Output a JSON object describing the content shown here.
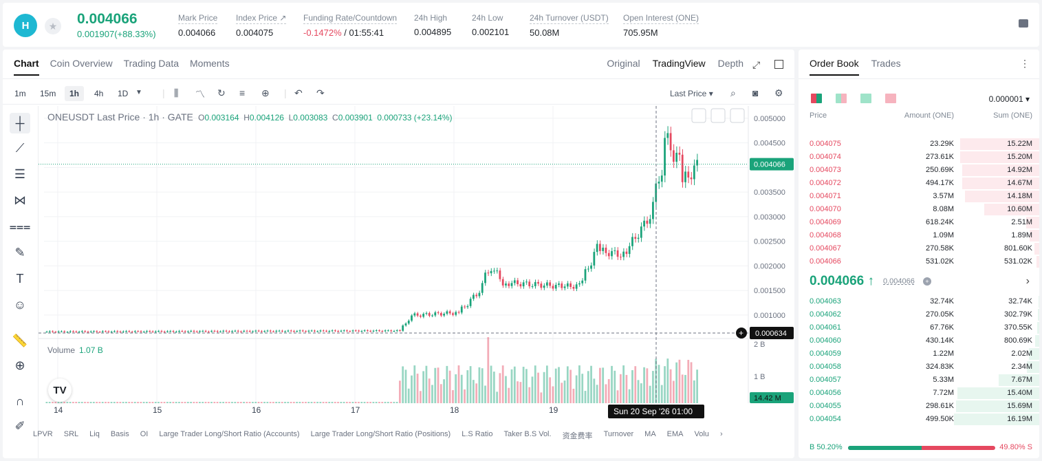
{
  "header": {
    "logo_text": "H",
    "price": "0.004066",
    "change": "0.001907(+88.33%)",
    "stats": [
      {
        "label": "Mark Price",
        "value": "0.004066"
      },
      {
        "label": "Index Price ↗",
        "value": "0.004075"
      },
      {
        "label": "Funding Rate/Countdown",
        "value_red": "-0.1472%",
        "value": "/ 01:55:41"
      },
      {
        "label": "24h High",
        "value": "0.004895"
      },
      {
        "label": "24h Low",
        "value": "0.002101"
      },
      {
        "label": "24h Turnover (USDT)",
        "value": "50.08M"
      },
      {
        "label": "Open Interest (ONE)",
        "value": "705.95M"
      }
    ]
  },
  "chart_panel": {
    "tabs": [
      "Chart",
      "Coin Overview",
      "Trading Data",
      "Moments"
    ],
    "views": [
      "Original",
      "TradingView",
      "Depth"
    ],
    "timeframes": [
      "1m",
      "15m",
      "1h",
      "4h",
      "1D"
    ],
    "price_source": "Last Price",
    "legend": {
      "symbol": "ONEUSDT Last Price · 1h · GATE",
      "o": "0.003164",
      "h": "0.004126",
      "l": "0.003083",
      "c": "0.003901",
      "chg": "0.000733 (+23.14%)"
    },
    "volume_label": "Volume",
    "volume_value": "1.07 B",
    "bottom_tabs": [
      "LPVR",
      "SRL",
      "Liq",
      "Basis",
      "OI",
      "Large Trader Long/Short Ratio (Accounts)",
      "Large Trader Long/Short Ratio (Positions)",
      "L.S Ratio",
      "Taker B.S Vol.",
      "资金费率",
      "Turnover",
      "MA",
      "EMA",
      "Volu"
    ]
  },
  "chart_data": {
    "type": "candlestick",
    "x_ticks": [
      "14",
      "15",
      "16",
      "17",
      "18",
      "19"
    ],
    "y_ticks": [
      "0.005000",
      "0.004500",
      "0.004000",
      "0.003500",
      "0.003000",
      "0.002500",
      "0.002000",
      "0.001500",
      "0.001000"
    ],
    "ylim": [
      0.00055,
      0.00525
    ],
    "vol_ticks": [
      "2 B",
      "1 B"
    ],
    "last_price_tag": "0.004066",
    "cursor_price_tag": "0.000634",
    "cursor_time": "Sun 20 Sep '26   01:00",
    "volume_tag": "14.42 M",
    "grid": true
  },
  "orderbook": {
    "tabs": [
      "Order Book",
      "Trades"
    ],
    "precision": "0.000001",
    "headers": [
      "Price",
      "Amount (ONE)",
      "Sum (ONE)"
    ],
    "asks": [
      {
        "price": "0.004075",
        "amount": "23.29K",
        "sum": "15.22M",
        "depth": 0.33
      },
      {
        "price": "0.004074",
        "amount": "273.61K",
        "sum": "15.20M",
        "depth": 0.33
      },
      {
        "price": "0.004073",
        "amount": "250.69K",
        "sum": "14.92M",
        "depth": 0.32
      },
      {
        "price": "0.004072",
        "amount": "494.17K",
        "sum": "14.67M",
        "depth": 0.32
      },
      {
        "price": "0.004071",
        "amount": "3.57M",
        "sum": "14.18M",
        "depth": 0.31
      },
      {
        "price": "0.004070",
        "amount": "8.08M",
        "sum": "10.60M",
        "depth": 0.23
      },
      {
        "price": "0.004069",
        "amount": "618.24K",
        "sum": "2.51M",
        "depth": 0.055
      },
      {
        "price": "0.004068",
        "amount": "1.09M",
        "sum": "1.89M",
        "depth": 0.04
      },
      {
        "price": "0.004067",
        "amount": "270.58K",
        "sum": "801.60K",
        "depth": 0.02
      },
      {
        "price": "0.004066",
        "amount": "531.02K",
        "sum": "531.02K",
        "depth": 0.012
      }
    ],
    "mid_price": "0.004066 ↑",
    "mark": "0.004066",
    "bids": [
      {
        "price": "0.004063",
        "amount": "32.74K",
        "sum": "32.74K",
        "depth": 0.002
      },
      {
        "price": "0.004062",
        "amount": "270.05K",
        "sum": "302.79K",
        "depth": 0.007
      },
      {
        "price": "0.004061",
        "amount": "67.76K",
        "sum": "370.55K",
        "depth": 0.008
      },
      {
        "price": "0.004060",
        "amount": "430.14K",
        "sum": "800.69K",
        "depth": 0.017
      },
      {
        "price": "0.004059",
        "amount": "1.22M",
        "sum": "2.02M",
        "depth": 0.044
      },
      {
        "price": "0.004058",
        "amount": "324.83K",
        "sum": "2.34M",
        "depth": 0.051
      },
      {
        "price": "0.004057",
        "amount": "5.33M",
        "sum": "7.67M",
        "depth": 0.17
      },
      {
        "price": "0.004056",
        "amount": "7.72M",
        "sum": "15.40M",
        "depth": 0.34
      },
      {
        "price": "0.004055",
        "amount": "298.61K",
        "sum": "15.69M",
        "depth": 0.345
      },
      {
        "price": "0.004054",
        "amount": "499.50K",
        "sum": "16.19M",
        "depth": 0.355
      }
    ],
    "buy_label": "B 50.20%",
    "sell_label": "49.80% S",
    "buy_ratio": 0.502,
    "colors": {
      "up": "#1aa37a",
      "down": "#e5485f",
      "up_bg": "#e7f6ef",
      "down_bg": "#fdeaed"
    }
  }
}
